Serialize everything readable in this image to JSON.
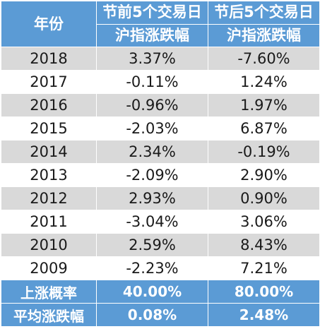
{
  "header": {
    "year": "年份",
    "before_line1": "节前5个交易日",
    "before_line2": "沪指涨跌幅",
    "after_line1": "节后5个交易日",
    "after_line2": "沪指涨跌幅"
  },
  "rows": [
    {
      "year": "2018",
      "before": "3.37%",
      "after": "-7.60%"
    },
    {
      "year": "2017",
      "before": "-0.11%",
      "after": "1.24%"
    },
    {
      "year": "2016",
      "before": "-0.96%",
      "after": "1.97%"
    },
    {
      "year": "2015",
      "before": "-2.03%",
      "after": "6.87%"
    },
    {
      "year": "2014",
      "before": "2.34%",
      "after": "-0.19%"
    },
    {
      "year": "2013",
      "before": "-2.09%",
      "after": "2.90%"
    },
    {
      "year": "2012",
      "before": "2.93%",
      "after": "0.90%"
    },
    {
      "year": "2011",
      "before": "-3.04%",
      "after": "3.06%"
    },
    {
      "year": "2010",
      "before": "2.59%",
      "after": "8.43%"
    },
    {
      "year": "2009",
      "before": "-2.23%",
      "after": "7.21%"
    }
  ],
  "summary": [
    {
      "label": "上涨概率",
      "before": "40.00%",
      "after": "80.00%"
    },
    {
      "label": "平均涨跌幅",
      "before": "0.08%",
      "after": "2.48%"
    }
  ],
  "colors": {
    "header_bg": "#5b9bd5",
    "odd_row_bg": "#d9d9d9",
    "even_row_bg": "#ffffff"
  }
}
